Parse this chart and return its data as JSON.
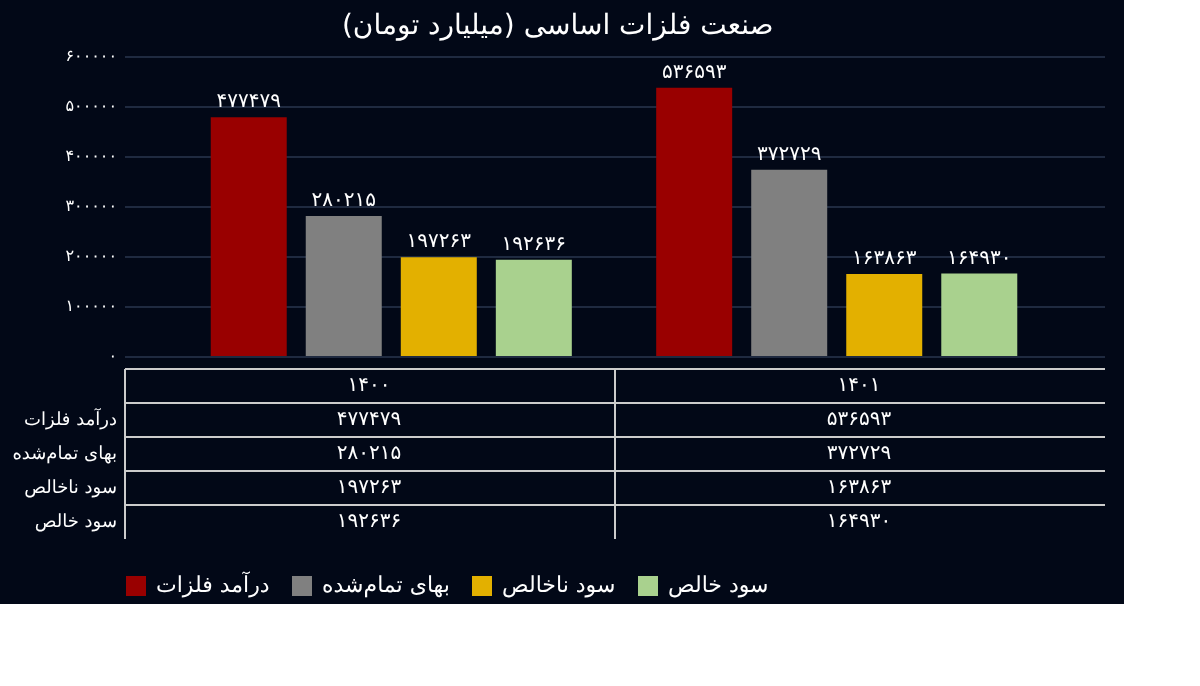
{
  "chart_data": {
    "type": "bar",
    "title": "صنعت فلزات اساسی (میلیارد تومان)",
    "categories": [
      "۱۴۰۰",
      "۱۴۰۱"
    ],
    "series": [
      {
        "name": "درآمد فلزات",
        "color": "#990000",
        "values": [
          477479,
          536593
        ],
        "value_labels": [
          "۴۷۷۴۷۹",
          "۵۳۶۵۹۳"
        ]
      },
      {
        "name": "بهای تمام‌شده",
        "color": "#808080",
        "values": [
          280215,
          372729
        ],
        "value_labels": [
          "۲۸۰۲۱۵",
          "۳۷۲۷۲۹"
        ]
      },
      {
        "name": "سود ناخالص",
        "color": "#e3b000",
        "values": [
          197263,
          163863
        ],
        "value_labels": [
          "۱۹۷۲۶۳",
          "۱۶۳۸۶۳"
        ]
      },
      {
        "name": "سود خالص",
        "color": "#a9d18e",
        "values": [
          192636,
          164930
        ],
        "value_labels": [
          "۱۹۲۶۳۶",
          "۱۶۴۹۳۰"
        ]
      }
    ],
    "ylim": [
      0,
      600000
    ],
    "yticks": [
      {
        "value": 0,
        "label": "۰"
      },
      {
        "value": 100000,
        "label": "۱۰۰۰۰۰"
      },
      {
        "value": 200000,
        "label": "۲۰۰۰۰۰"
      },
      {
        "value": 300000,
        "label": "۳۰۰۰۰۰"
      },
      {
        "value": 400000,
        "label": "۴۰۰۰۰۰"
      },
      {
        "value": 500000,
        "label": "۵۰۰۰۰۰"
      },
      {
        "value": 600000,
        "label": "۶۰۰۰۰۰"
      }
    ],
    "grid": "y",
    "legend": "bottom"
  }
}
